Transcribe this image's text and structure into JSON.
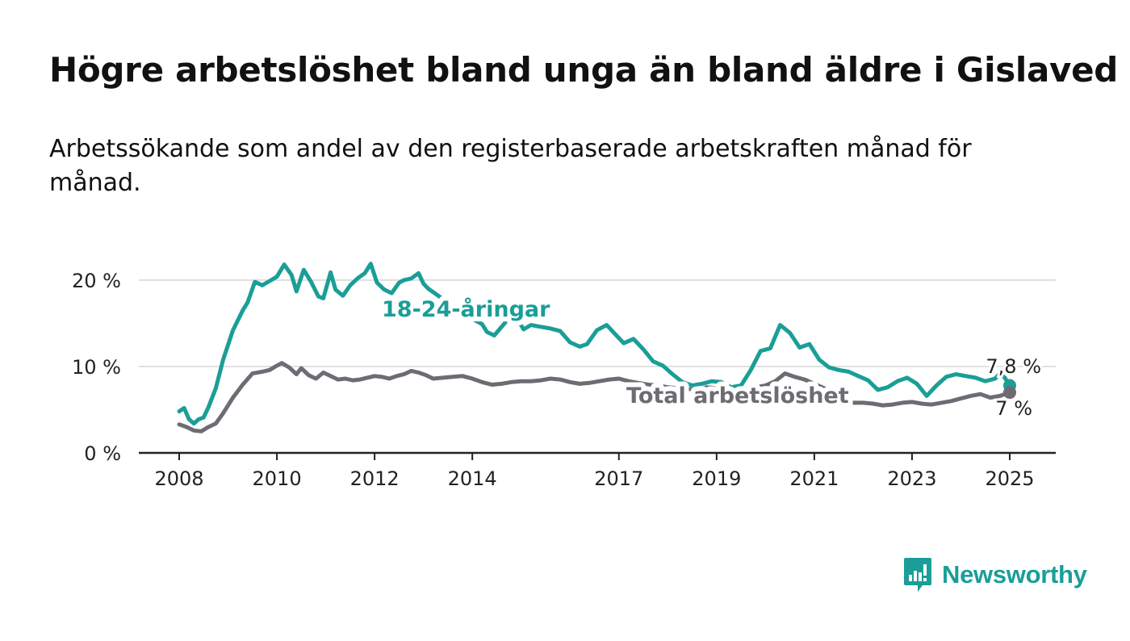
{
  "title": "Högre arbetslöshet bland unga än bland äldre i Gislaved",
  "subtitle": "Arbetssökande som andel av den registerbaserade arbetskraften månad för månad.",
  "brand": {
    "name": "Newsworthy",
    "icon": "newsworthy-logo-icon",
    "color": "#1a9e97"
  },
  "chart_data": {
    "type": "line",
    "x_unit": "year",
    "xlim": [
      2007.9,
      2025.8
    ],
    "ylim": [
      0,
      22
    ],
    "yticks": [
      0,
      10,
      20
    ],
    "ytick_labels": [
      "0 %",
      "10 %",
      "20 %"
    ],
    "xticks": [
      2008,
      2010,
      2012,
      2014,
      2017,
      2019,
      2021,
      2023,
      2025
    ],
    "xtick_labels": [
      "2008",
      "2010",
      "2012",
      "2014",
      "2017",
      "2019",
      "2021",
      "2023",
      "2025"
    ],
    "grid": "horizontal",
    "series": [
      {
        "name": "18-24-åringar",
        "color": "#1a9e97",
        "end_label": "7,8 %",
        "x": [
          2008.0,
          2008.1,
          2008.2,
          2008.3,
          2008.4,
          2008.5,
          2008.6,
          2008.75,
          2008.9,
          2009.1,
          2009.3,
          2009.4,
          2009.55,
          2009.7,
          2009.85,
          2010.0,
          2010.15,
          2010.3,
          2010.4,
          2010.55,
          2010.7,
          2010.85,
          2010.95,
          2011.1,
          2011.2,
          2011.35,
          2011.5,
          2011.65,
          2011.8,
          2011.92,
          2012.05,
          2012.2,
          2012.35,
          2012.5,
          2012.6,
          2012.75,
          2012.9,
          2013.0,
          2013.1,
          2013.25,
          2013.4,
          2013.6,
          2013.75,
          2014.2,
          2014.3,
          2014.45,
          2014.6,
          2014.75,
          2014.9,
          2015.05,
          2015.2,
          2015.4,
          2015.6,
          2015.8,
          2016.0,
          2016.2,
          2016.35,
          2016.55,
          2016.75,
          2016.9,
          2017.1,
          2017.3,
          2017.5,
          2017.7,
          2017.9,
          2018.1,
          2018.3,
          2018.5,
          2018.7,
          2018.9,
          2019.1,
          2019.3,
          2019.5,
          2019.7,
          2019.9,
          2020.1,
          2020.3,
          2020.5,
          2020.7,
          2020.9,
          2021.1,
          2021.3,
          2021.5,
          2021.7,
          2021.9,
          2022.1,
          2022.3,
          2022.5,
          2022.7,
          2022.9,
          2023.1,
          2023.3,
          2023.5,
          2023.7,
          2023.9,
          2024.1,
          2024.3,
          2024.5,
          2024.7,
          2024.8,
          2024.9,
          2025.0
        ],
        "values": [
          4.8,
          5.2,
          3.9,
          3.4,
          3.9,
          4.1,
          5.3,
          7.5,
          10.8,
          14.2,
          16.5,
          17.4,
          19.8,
          19.4,
          19.9,
          20.4,
          21.8,
          20.6,
          18.7,
          21.2,
          19.8,
          18.1,
          17.9,
          20.9,
          18.9,
          18.2,
          19.4,
          20.2,
          20.8,
          21.9,
          19.7,
          18.9,
          18.5,
          19.7,
          20.0,
          20.2,
          20.8,
          19.6,
          19.0,
          18.4,
          17.8,
          17.0,
          16.3,
          14.9,
          14.0,
          13.6,
          14.6,
          15.6,
          15.7,
          14.3,
          14.8,
          14.6,
          14.4,
          14.1,
          12.8,
          12.3,
          12.6,
          14.2,
          14.8,
          13.9,
          12.7,
          13.2,
          12.0,
          10.6,
          10.1,
          9.1,
          8.2,
          7.8,
          8.0,
          8.3,
          8.2,
          7.6,
          7.8,
          9.6,
          11.8,
          12.1,
          14.8,
          13.9,
          12.2,
          12.6,
          10.8,
          9.9,
          9.6,
          9.4,
          8.9,
          8.4,
          7.3,
          7.6,
          8.3,
          8.7,
          8.0,
          6.6,
          7.8,
          8.8,
          9.1,
          8.9,
          8.7,
          8.3,
          8.6,
          9.2,
          8.7,
          7.8
        ]
      },
      {
        "name": "Total arbetslöshet",
        "color": "#6e6b73",
        "end_label": "7 %",
        "x": [
          2008.0,
          2008.15,
          2008.3,
          2008.45,
          2008.6,
          2008.75,
          2008.9,
          2009.1,
          2009.3,
          2009.5,
          2009.7,
          2009.85,
          2010.0,
          2010.1,
          2010.25,
          2010.4,
          2010.5,
          2010.65,
          2010.8,
          2010.95,
          2011.1,
          2011.25,
          2011.4,
          2011.55,
          2011.7,
          2011.85,
          2012.0,
          2012.15,
          2012.3,
          2012.45,
          2012.6,
          2012.75,
          2012.9,
          2013.05,
          2013.2,
          2013.4,
          2013.6,
          2013.8,
          2014.0,
          2014.2,
          2014.4,
          2014.6,
          2014.8,
          2015.0,
          2015.2,
          2015.4,
          2015.6,
          2015.8,
          2016.0,
          2016.2,
          2016.4,
          2016.6,
          2016.8,
          2017.0,
          2017.2,
          2017.4,
          2017.6,
          2017.8,
          2018.0,
          2018.2,
          2018.4,
          2018.6,
          2018.8,
          2019.0,
          2019.2,
          2019.4,
          2019.6,
          2019.8,
          2020.0,
          2020.2,
          2020.4,
          2020.6,
          2020.8,
          2021.0,
          2021.2,
          2021.4,
          2021.6,
          2021.8,
          2022.0,
          2022.2,
          2022.4,
          2022.6,
          2022.8,
          2023.0,
          2023.2,
          2023.4,
          2023.6,
          2023.8,
          2024.0,
          2024.2,
          2024.4,
          2024.6,
          2024.8,
          2025.0
        ],
        "values": [
          3.3,
          3.0,
          2.6,
          2.5,
          3.0,
          3.4,
          4.6,
          6.4,
          7.9,
          9.2,
          9.4,
          9.6,
          10.1,
          10.4,
          9.9,
          9.1,
          9.8,
          9.0,
          8.6,
          9.3,
          8.9,
          8.5,
          8.6,
          8.4,
          8.5,
          8.7,
          8.9,
          8.8,
          8.6,
          8.9,
          9.1,
          9.5,
          9.3,
          9.0,
          8.6,
          8.7,
          8.8,
          8.9,
          8.6,
          8.2,
          7.9,
          8.0,
          8.2,
          8.3,
          8.3,
          8.4,
          8.6,
          8.5,
          8.2,
          8.0,
          8.1,
          8.3,
          8.5,
          8.6,
          8.3,
          8.1,
          7.9,
          7.8,
          7.6,
          7.5,
          7.4,
          7.3,
          7.6,
          7.5,
          7.4,
          7.3,
          7.4,
          7.6,
          7.8,
          8.3,
          9.2,
          8.8,
          8.5,
          8.0,
          7.5,
          6.8,
          6.2,
          5.8,
          5.8,
          5.7,
          5.5,
          5.6,
          5.8,
          5.9,
          5.7,
          5.6,
          5.8,
          6.0,
          6.3,
          6.6,
          6.8,
          6.4,
          6.6,
          7.0
        ]
      }
    ]
  }
}
